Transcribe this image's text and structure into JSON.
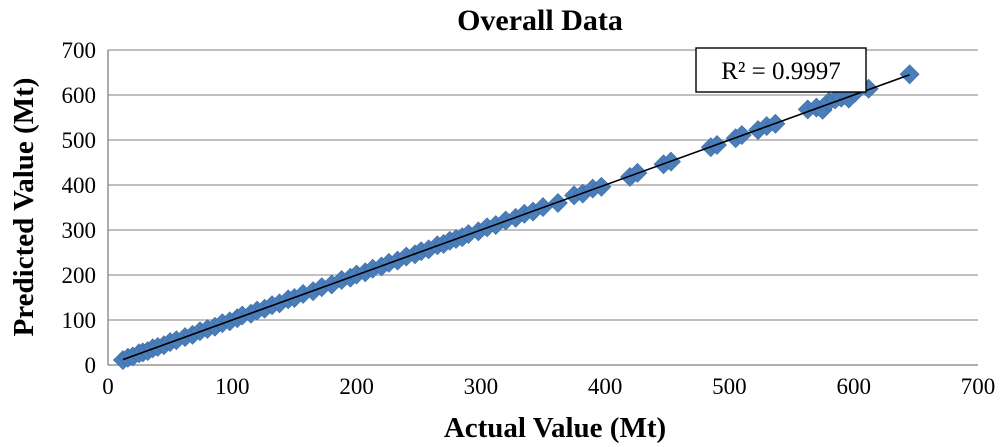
{
  "chart_data": {
    "type": "scatter",
    "title": "Overall Data",
    "xlabel": "Actual Value (Mt)",
    "ylabel": "Predicted Value (Mt)",
    "xlim": [
      0,
      700
    ],
    "ylim": [
      0,
      700
    ],
    "x_ticks": [
      "0",
      "100",
      "200",
      "300",
      "400",
      "500",
      "600",
      "700"
    ],
    "y_ticks": [
      "0",
      "100",
      "200",
      "300",
      "400",
      "500",
      "600",
      "700"
    ],
    "grid": true,
    "marker": "diamond",
    "series_color": "#4a7ebb",
    "trendline": {
      "type": "linear",
      "x_range": [
        12,
        645
      ],
      "slope": 1.0,
      "intercept": 0
    },
    "annotation": "R² = 0.9997",
    "points": [
      [
        12,
        11
      ],
      [
        16,
        16
      ],
      [
        20,
        19
      ],
      [
        25,
        26
      ],
      [
        28,
        28
      ],
      [
        32,
        31
      ],
      [
        36,
        37
      ],
      [
        40,
        40
      ],
      [
        45,
        44
      ],
      [
        50,
        51
      ],
      [
        55,
        55
      ],
      [
        62,
        62
      ],
      [
        68,
        67
      ],
      [
        74,
        75
      ],
      [
        80,
        80
      ],
      [
        86,
        85
      ],
      [
        92,
        93
      ],
      [
        98,
        97
      ],
      [
        104,
        104
      ],
      [
        108,
        110
      ],
      [
        115,
        114
      ],
      [
        120,
        121
      ],
      [
        126,
        125
      ],
      [
        132,
        133
      ],
      [
        138,
        137
      ],
      [
        145,
        146
      ],
      [
        150,
        149
      ],
      [
        157,
        158
      ],
      [
        165,
        164
      ],
      [
        172,
        173
      ],
      [
        180,
        179
      ],
      [
        188,
        189
      ],
      [
        195,
        194
      ],
      [
        200,
        201
      ],
      [
        207,
        206
      ],
      [
        213,
        214
      ],
      [
        220,
        219
      ],
      [
        226,
        227
      ],
      [
        233,
        232
      ],
      [
        240,
        241
      ],
      [
        247,
        246
      ],
      [
        252,
        253
      ],
      [
        258,
        257
      ],
      [
        265,
        266
      ],
      [
        270,
        269
      ],
      [
        275,
        276
      ],
      [
        280,
        280
      ],
      [
        285,
        284
      ],
      [
        290,
        291
      ],
      [
        298,
        297
      ],
      [
        305,
        306
      ],
      [
        312,
        311
      ],
      [
        320,
        321
      ],
      [
        328,
        327
      ],
      [
        335,
        336
      ],
      [
        342,
        341
      ],
      [
        350,
        351
      ],
      [
        362,
        360
      ],
      [
        375,
        377
      ],
      [
        382,
        381
      ],
      [
        390,
        392
      ],
      [
        397,
        396
      ],
      [
        420,
        418
      ],
      [
        426,
        427
      ],
      [
        447,
        446
      ],
      [
        453,
        452
      ],
      [
        485,
        484
      ],
      [
        490,
        489
      ],
      [
        505,
        504
      ],
      [
        510,
        511
      ],
      [
        523,
        522
      ],
      [
        530,
        531
      ],
      [
        537,
        536
      ],
      [
        563,
        568
      ],
      [
        570,
        572
      ],
      [
        575,
        567
      ],
      [
        580,
        585
      ],
      [
        585,
        590
      ],
      [
        590,
        594
      ],
      [
        596,
        592
      ],
      [
        601,
        605
      ],
      [
        612,
        614
      ],
      [
        645,
        646
      ]
    ]
  }
}
